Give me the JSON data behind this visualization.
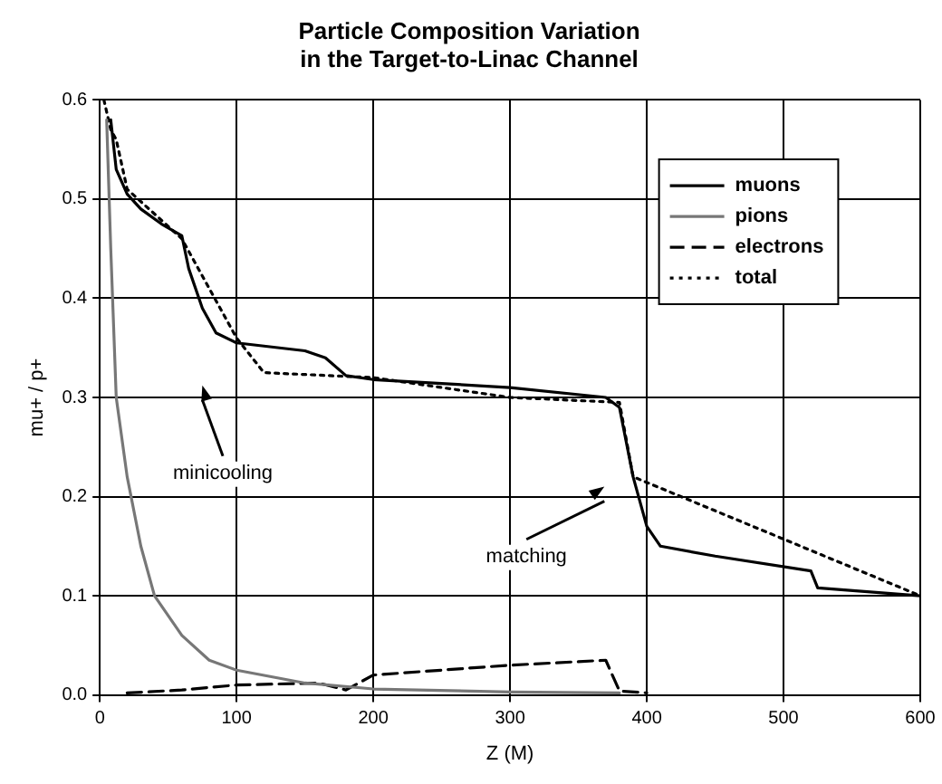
{
  "chart_data": {
    "type": "line",
    "title": "Particle Composition Variation\nin the Target-to-Linac Channel",
    "xlabel": "Z (M)",
    "ylabel": "mu+ / p+",
    "xlim": [
      0,
      600
    ],
    "xticks": [
      0,
      100,
      200,
      300,
      400,
      500,
      600
    ],
    "ylim": [
      0,
      0.6
    ],
    "yticks": [
      {
        "value": 0,
        "label": "0.0"
      },
      {
        "value": 0.1,
        "label": "0.1"
      },
      {
        "value": 0.2,
        "label": "0.2"
      },
      {
        "value": 0.3,
        "label": "0.3"
      },
      {
        "value": 0.4,
        "label": "0.4"
      },
      {
        "value": 0.5,
        "label": "0.5"
      },
      {
        "value": 0.6,
        "label": "0.6"
      }
    ],
    "grid": true,
    "legend": "top right",
    "marker": "none",
    "series": [
      {
        "name": "muons",
        "color": "#000000",
        "line_style": "solid",
        "x": [
          8,
          12,
          20,
          30,
          45,
          60,
          65,
          75,
          85,
          100,
          150,
          165,
          180,
          200,
          300,
          370,
          380,
          390,
          400,
          410,
          450,
          520,
          525,
          600
        ],
        "values": [
          0.58,
          0.53,
          0.505,
          0.49,
          0.475,
          0.463,
          0.43,
          0.39,
          0.365,
          0.355,
          0.347,
          0.34,
          0.322,
          0.318,
          0.31,
          0.3,
          0.29,
          0.22,
          0.17,
          0.15,
          0.14,
          0.125,
          0.108,
          0.1
        ]
      },
      {
        "name": "pions",
        "color": "#777777",
        "line_style": "solid",
        "x": [
          5,
          8,
          12,
          20,
          30,
          40,
          60,
          80,
          100,
          150,
          200,
          300,
          380
        ],
        "values": [
          0.58,
          0.45,
          0.3,
          0.22,
          0.15,
          0.1,
          0.06,
          0.035,
          0.025,
          0.012,
          0.006,
          0.003,
          0.002
        ]
      },
      {
        "name": "electrons",
        "color": "#000000",
        "line_style": "dashed",
        "x": [
          20,
          60,
          100,
          160,
          180,
          200,
          300,
          370,
          380,
          400
        ],
        "values": [
          0.002,
          0.005,
          0.01,
          0.012,
          0.005,
          0.02,
          0.03,
          0.035,
          0.004,
          0.002
        ]
      },
      {
        "name": "total",
        "color": "#000000",
        "line_style": "dotted",
        "x": [
          3,
          8,
          12,
          20,
          60,
          100,
          120,
          200,
          300,
          380,
          390,
          600
        ],
        "values": [
          0.6,
          0.57,
          0.56,
          0.51,
          0.46,
          0.36,
          0.325,
          0.32,
          0.3,
          0.295,
          0.22,
          0.1
        ]
      }
    ],
    "annotations": [
      "minicooling",
      "matching"
    ]
  }
}
